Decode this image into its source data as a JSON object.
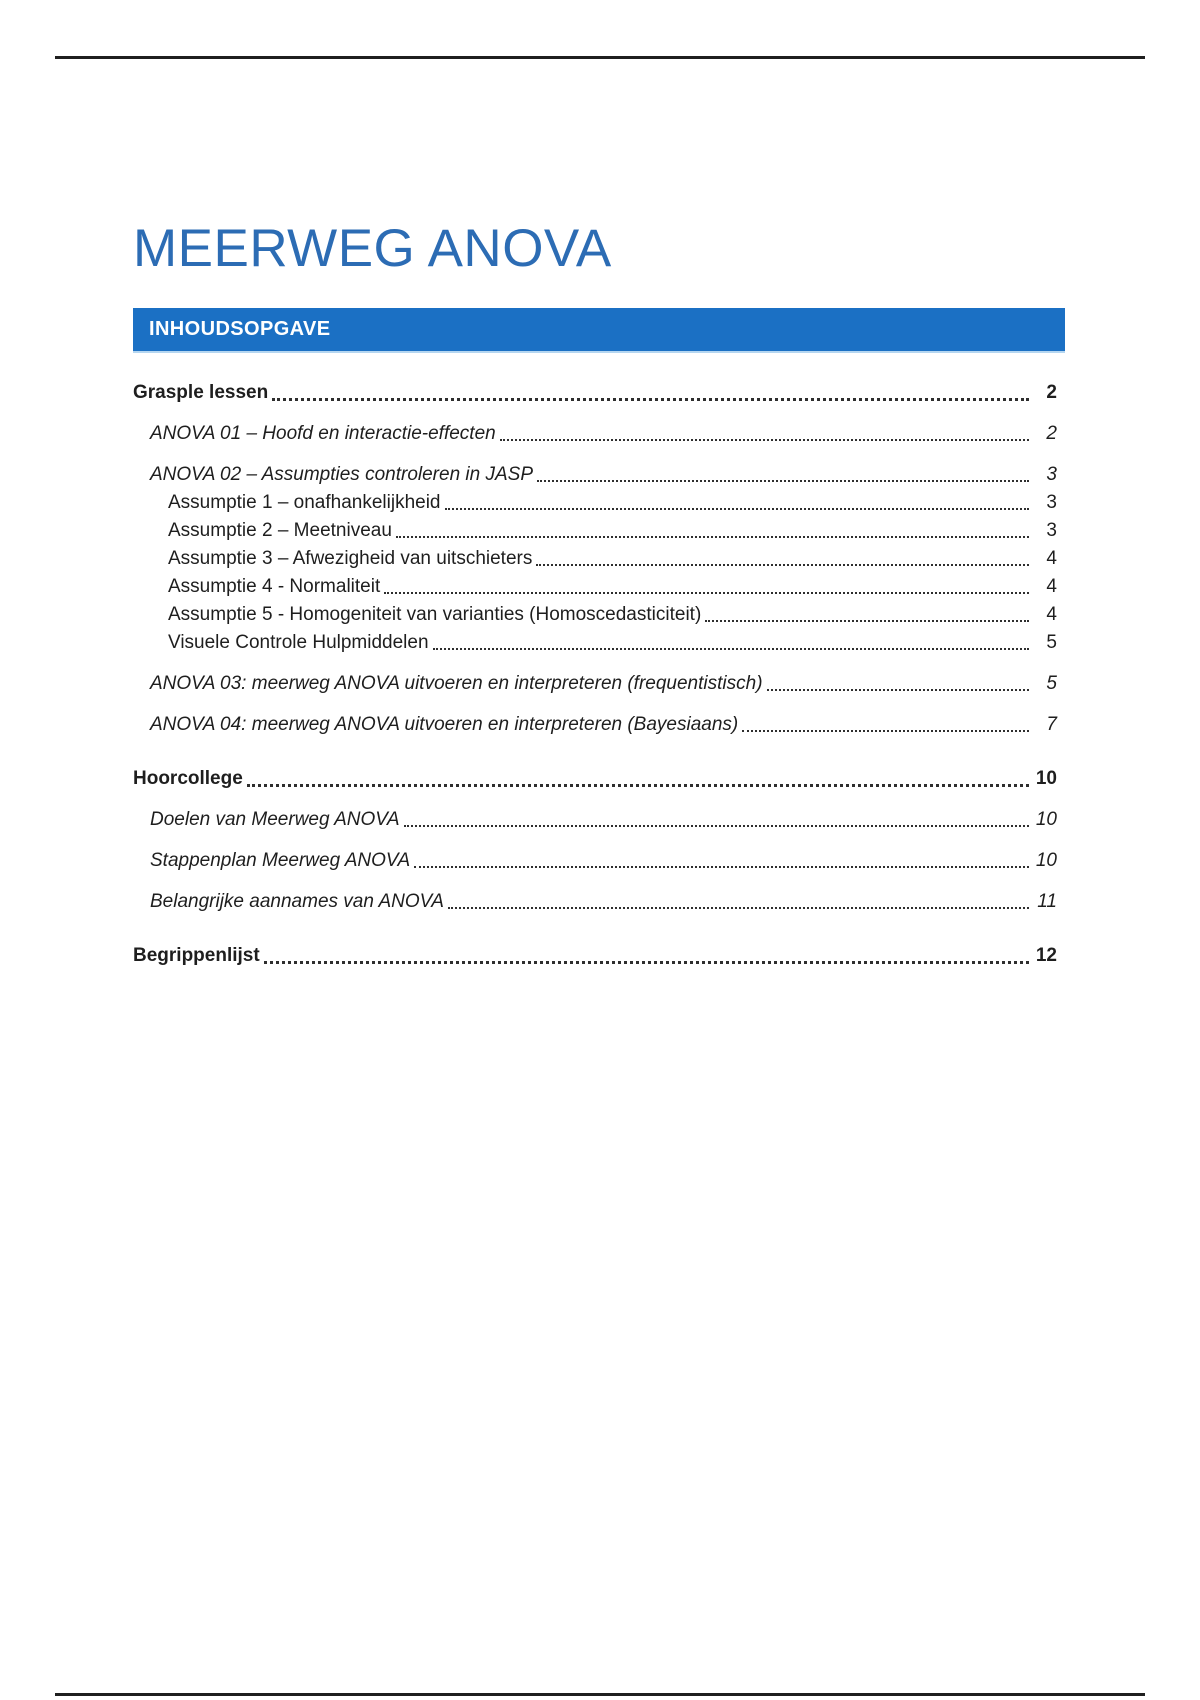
{
  "document": {
    "title": "MEERWEG ANOVA"
  },
  "toc": {
    "header": "INHOUDSOPGAVE",
    "entries": [
      {
        "label": "Grasple lessen",
        "page": "2",
        "level": 0
      },
      {
        "label": "ANOVA 01 – Hoofd en interactie-effecten",
        "page": "2",
        "level": 1
      },
      {
        "label": "ANOVA 02 – Assumpties controleren in JASP",
        "page": "3",
        "level": 1
      },
      {
        "label": "Assumptie 1 – onafhankelijkheid",
        "page": "3",
        "level": 2
      },
      {
        "label": "Assumptie 2 – Meetniveau",
        "page": "3",
        "level": 2
      },
      {
        "label": "Assumptie 3 – Afwezigheid van uitschieters",
        "page": "4",
        "level": 2
      },
      {
        "label": "Assumptie 4 - Normaliteit",
        "page": "4",
        "level": 2
      },
      {
        "label": "Assumptie 5 - Homogeniteit van varianties (Homoscedasticiteit)",
        "page": "4",
        "level": 2
      },
      {
        "label": "Visuele Controle Hulpmiddelen",
        "page": "5",
        "level": 2
      },
      {
        "label": "ANOVA 03: meerweg ANOVA uitvoeren en interpreteren (frequentistisch)",
        "page": "5",
        "level": 1
      },
      {
        "label": "ANOVA 04: meerweg ANOVA uitvoeren en interpreteren (Bayesiaans)",
        "page": "7",
        "level": 1
      },
      {
        "label": "Hoorcollege",
        "page": "10",
        "level": 0
      },
      {
        "label": "Doelen van Meerweg ANOVA",
        "page": "10",
        "level": 1
      },
      {
        "label": "Stappenplan Meerweg ANOVA",
        "page": "10",
        "level": 1
      },
      {
        "label": "Belangrijke aannames van ANOVA",
        "page": "11",
        "level": 1
      },
      {
        "label": "Begrippenlijst",
        "page": "12",
        "level": 0
      }
    ]
  },
  "colors": {
    "banner_blue": "#1b70c4",
    "title_blue": "#2c6cb4",
    "text": "#1e1e1e",
    "rule": "#1f1f1f"
  }
}
